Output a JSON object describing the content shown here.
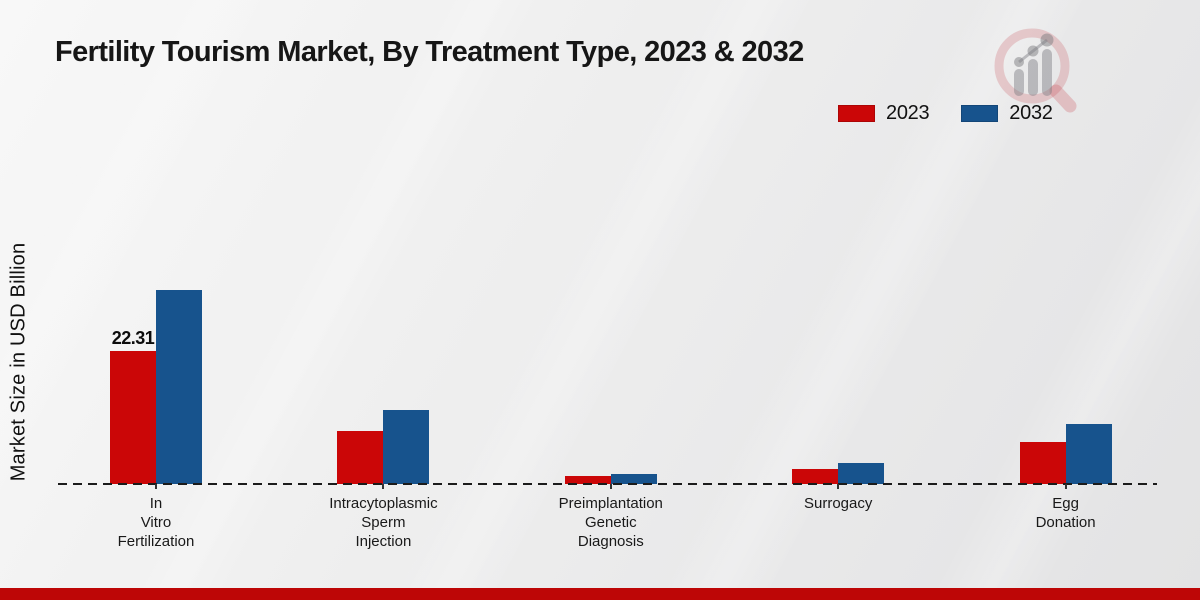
{
  "chart_data": {
    "type": "bar",
    "title": "Fertility Tourism Market, By Treatment Type, 2023 & 2032",
    "xlabel": "",
    "ylabel": "Market Size in USD Billion",
    "categories": [
      "In Vitro Fertilization",
      "Intracytoplasmic Sperm Injection",
      "Preimplantation Genetic Diagnosis",
      "Surrogacy",
      "Egg Donation"
    ],
    "series": [
      {
        "name": "2023",
        "color": "#cb0607",
        "values": [
          22.31,
          9.0,
          1.3,
          2.6,
          7.1
        ]
      },
      {
        "name": "2032",
        "color": "#17538d",
        "values": [
          32.7,
          12.5,
          1.7,
          3.5,
          10.1
        ]
      }
    ],
    "value_labels": [
      {
        "series_index": 0,
        "category_index": 0,
        "text": "22.31"
      }
    ],
    "ylim": [
      0,
      34
    ],
    "grid": false,
    "baseline_style": "dashed",
    "legend_position": "top-right"
  },
  "icons": {
    "logo_name": "magnifier-bar-chart-logo"
  },
  "footer": {
    "accent_color": "#bd0606"
  }
}
